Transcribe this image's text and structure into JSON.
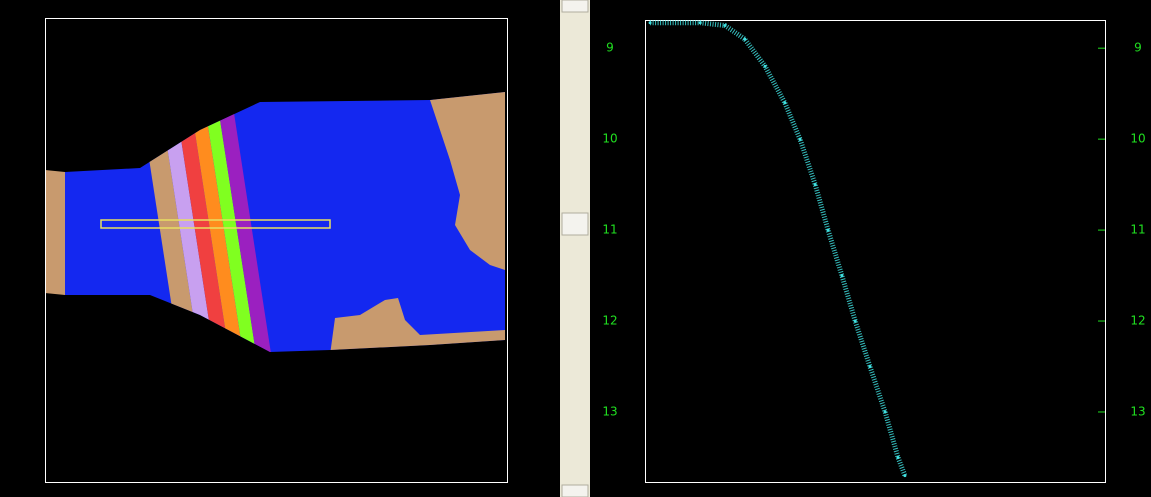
{
  "chart_data": {
    "type": "scatter",
    "x": [
      0.011,
      0.12,
      0.174,
      0.217,
      0.261,
      0.304,
      0.337,
      0.37,
      0.398,
      0.428,
      0.457,
      0.489,
      0.522,
      0.55,
      0.565
    ],
    "values": [
      8.72,
      8.72,
      8.75,
      8.9,
      9.2,
      9.6,
      10,
      10.5,
      11,
      11.5,
      12,
      12.5,
      13,
      13.5,
      13.7
    ],
    "color": "#40e0e0",
    "xlim": [
      0,
      1
    ],
    "ylim": [
      8.69,
      13.77
    ],
    "y_inverted": true,
    "yticks": [
      9,
      10,
      11,
      12,
      13
    ],
    "tick_color": "#20e020"
  }
}
